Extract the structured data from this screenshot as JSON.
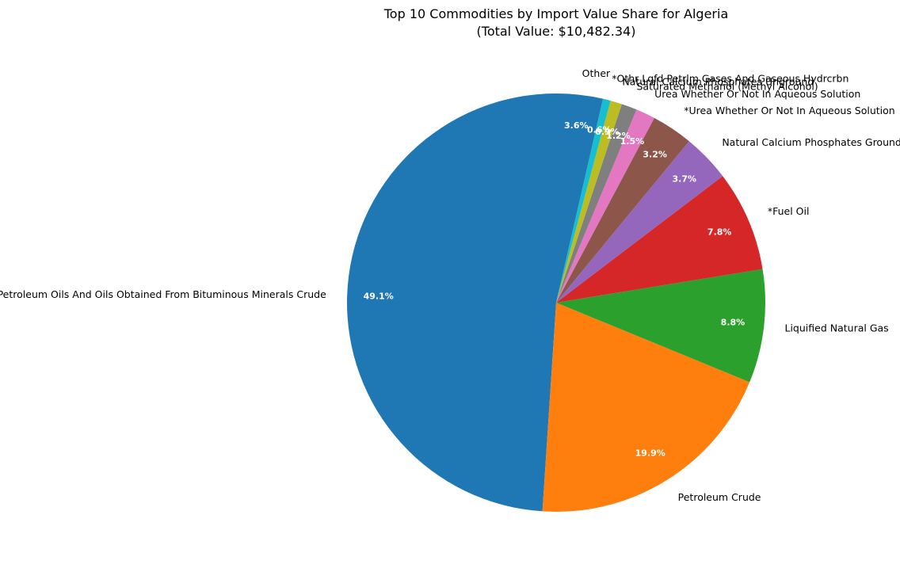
{
  "chart_data": {
    "type": "pie",
    "title": "Top 10 Commodities by Import Value Share for Algeria",
    "subtitle": "(Total Value: $10,482.34)",
    "start_angle_deg": 90,
    "direction": "counterclockwise",
    "slices": [
      {
        "label": "Petroleum Oils And Oils Obtained From Bituminous Minerals Crude",
        "value": 49.1,
        "pct_text": "49.1%",
        "color": "#1f77b4"
      },
      {
        "label": "Petroleum Crude",
        "value": 19.9,
        "pct_text": "19.9%",
        "color": "#ff7f0e"
      },
      {
        "label": "Liquified Natural Gas",
        "value": 8.8,
        "pct_text": "8.8%",
        "color": "#2ca02c"
      },
      {
        "label": "*Fuel Oil",
        "value": 7.8,
        "pct_text": "7.8%",
        "color": "#d62728"
      },
      {
        "label": "Natural Calcium Phosphates Ground",
        "value": 3.7,
        "pct_text": "3.7%",
        "color": "#9467bd"
      },
      {
        "label": "*Urea Whether Or Not In Aqueous Solution",
        "value": 3.2,
        "pct_text": "3.2%",
        "color": "#8c564b"
      },
      {
        "label": "Urea Whether Or Not In Aqueous Solution",
        "value": 1.5,
        "pct_text": "1.5%",
        "color": "#e377c2"
      },
      {
        "label": "Saturated Methanol (Methyl Alcohol)",
        "value": 1.2,
        "pct_text": "1.2%",
        "color": "#7f7f7f"
      },
      {
        "label": "Natural Calcium Phosphates Unground",
        "value": 0.9,
        "pct_text": "0.9%",
        "color": "#bcbd22"
      },
      {
        "label": "*Othr Lqfd Petrlm Gases And Gaseous Hydrcrbn",
        "value": 0.6,
        "pct_text": "0.6%",
        "color": "#17becf"
      },
      {
        "label": "Other",
        "value": 3.6,
        "pct_text": "3.6%",
        "color": "#1f77b4"
      }
    ]
  }
}
